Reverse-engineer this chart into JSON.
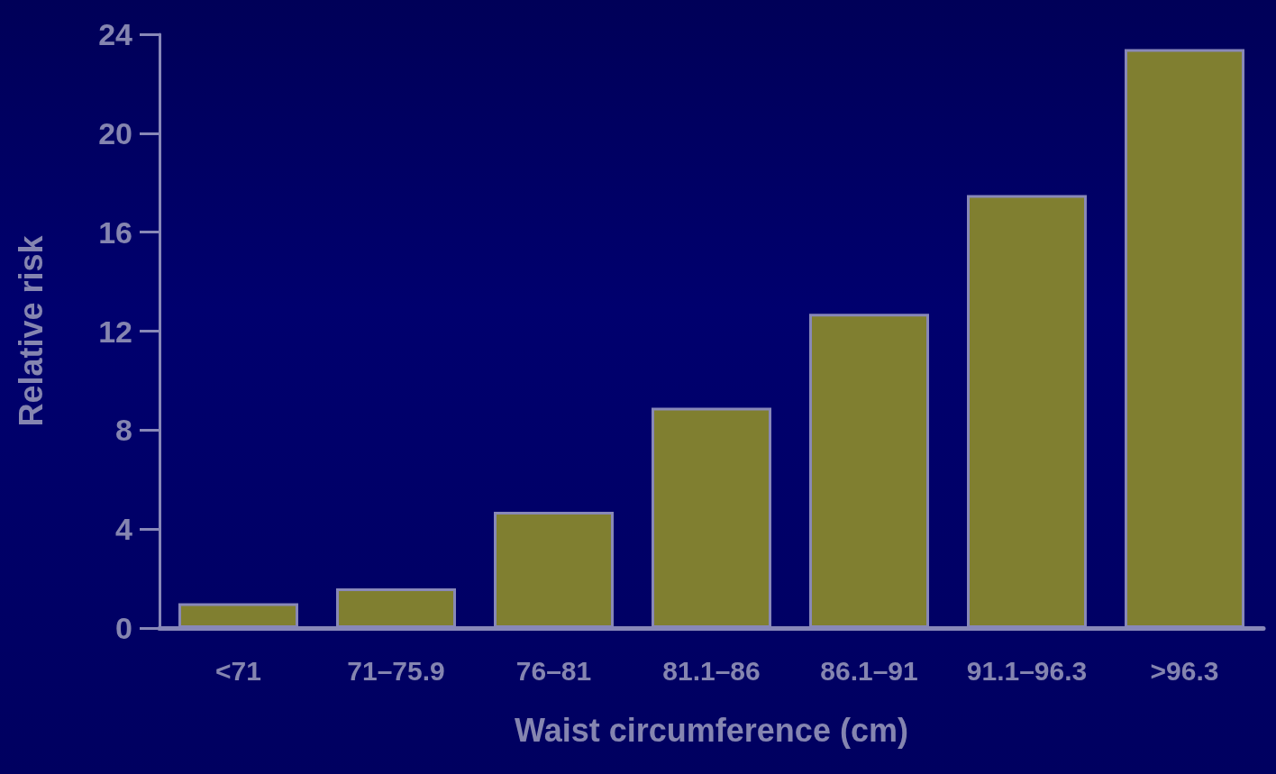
{
  "chart_data": {
    "type": "bar",
    "xlabel": "Waist circumference (cm)",
    "ylabel": "Relative risk",
    "categories": [
      "<71",
      "71–75.9",
      "76–81",
      "81.1–86",
      "86.1–91",
      "91.1–96.3",
      ">96.3"
    ],
    "values": [
      1.0,
      1.6,
      4.7,
      8.9,
      12.7,
      17.5,
      23.4
    ],
    "color": "#807f30",
    "ylim": [
      0,
      24
    ],
    "yticks": [
      0,
      4,
      8,
      12,
      16,
      20,
      24
    ],
    "grid": false
  }
}
